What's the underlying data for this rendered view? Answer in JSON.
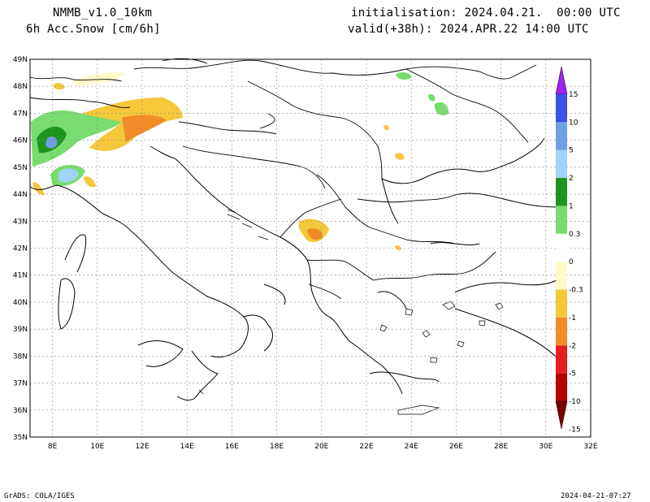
{
  "header": {
    "model": "NMMB_v1.0_10km",
    "variable": "6h Acc.Snow [cm/6h]",
    "init": "initialisation: 2024.04.21.  00:00 UTC",
    "valid": "valid(+38h): 2024.APR.22 14:00 UTC"
  },
  "map": {
    "lat_labels": [
      "49N",
      "48N",
      "47N",
      "46N",
      "45N",
      "44N",
      "43N",
      "42N",
      "41N",
      "40N",
      "39N",
      "38N",
      "37N",
      "36N",
      "35N"
    ],
    "lon_labels": [
      "8E",
      "10E",
      "12E",
      "14E",
      "16E",
      "18E",
      "20E",
      "22E",
      "24E",
      "26E",
      "28E",
      "30E",
      "32E"
    ],
    "lat_range": [
      35,
      49
    ],
    "lon_range": [
      7,
      32
    ],
    "grid": true
  },
  "colorbar": {
    "labels": [
      "15",
      "10",
      "5",
      "2",
      "1",
      "0.3",
      "0",
      "-0.3",
      "-1",
      "-2",
      "-5",
      "-10",
      "-15"
    ],
    "colors": [
      "#a020f0",
      "#3c50e6",
      "#6ea0e6",
      "#a0d2fa",
      "#1e961e",
      "#78dc6e",
      "#ffffff",
      "#fffac8",
      "#f5c83c",
      "#f08c28",
      "#e61e1e",
      "#b40000",
      "#780000"
    ]
  },
  "footer": {
    "left": "GrADS: COLA/IGES",
    "right": "2024-04-21-07:27"
  }
}
